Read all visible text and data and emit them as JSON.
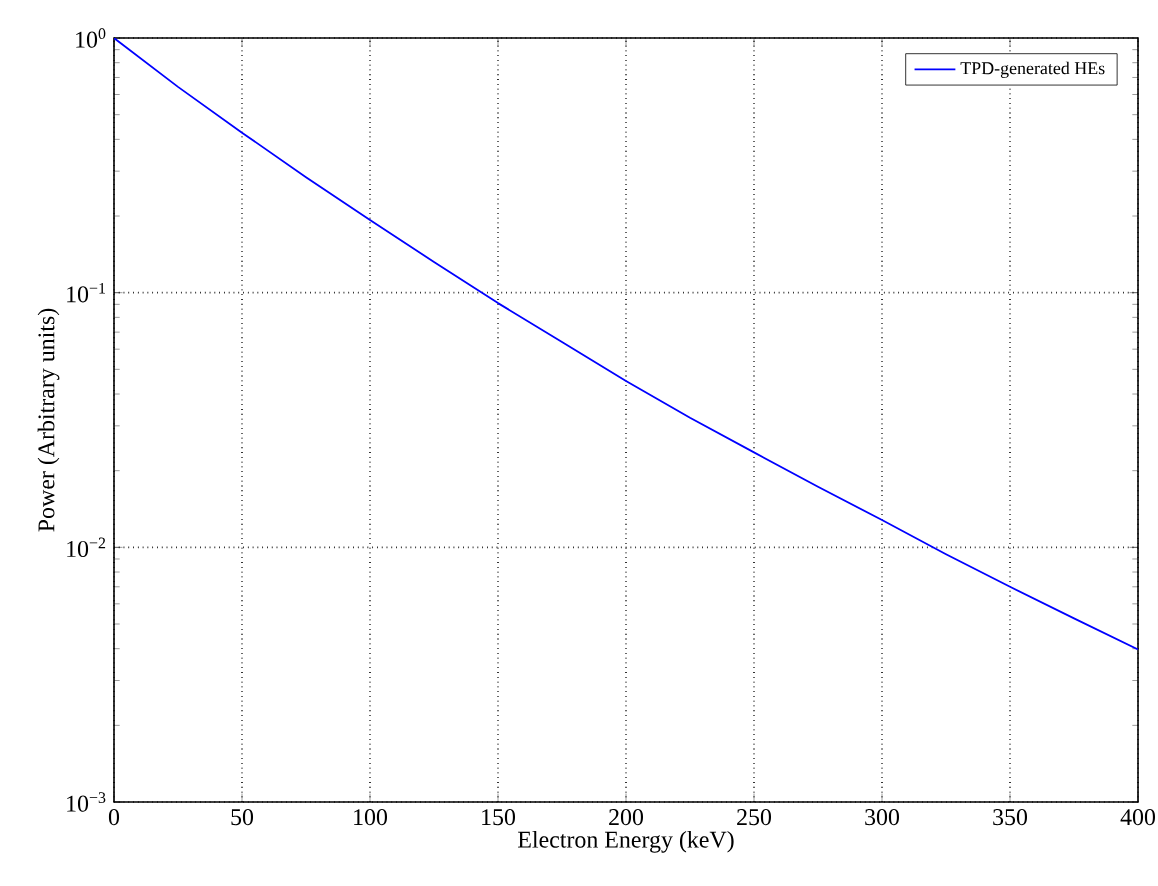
{
  "chart_data": {
    "type": "line",
    "xlabel": "Electron Energy (keV)",
    "ylabel": "Power (Arbitrary units)",
    "x": [
      0,
      25,
      50,
      75,
      100,
      125,
      150,
      175,
      200,
      225,
      250,
      275,
      300,
      325,
      350,
      375,
      400
    ],
    "series": [
      {
        "name": "TPD-generated HEs",
        "color": "#0000ff",
        "values": [
          1,
          0.643,
          0.425,
          0.284,
          0.193,
          0.132,
          0.091,
          0.064,
          0.045,
          0.0323,
          0.0236,
          0.0173,
          0.0128,
          0.0094,
          0.007,
          0.00526,
          0.00397
        ]
      }
    ],
    "xlim": [
      0,
      400
    ],
    "xticks": [
      0,
      50,
      100,
      150,
      200,
      250,
      300,
      350,
      400
    ],
    "ylim": [
      0.001,
      1
    ],
    "yticks": [
      {
        "value": 0.001,
        "label": "10$^{−3}$"
      },
      {
        "value": 0.01,
        "label": "10$^{−2}$"
      },
      {
        "value": 0.1,
        "label": "10$^{−1}$"
      },
      {
        "value": 1,
        "label": "10$^{0}$"
      }
    ],
    "log": true,
    "grid": true,
    "legend": "top right",
    "marker": "none",
    "line_style": "solid"
  }
}
